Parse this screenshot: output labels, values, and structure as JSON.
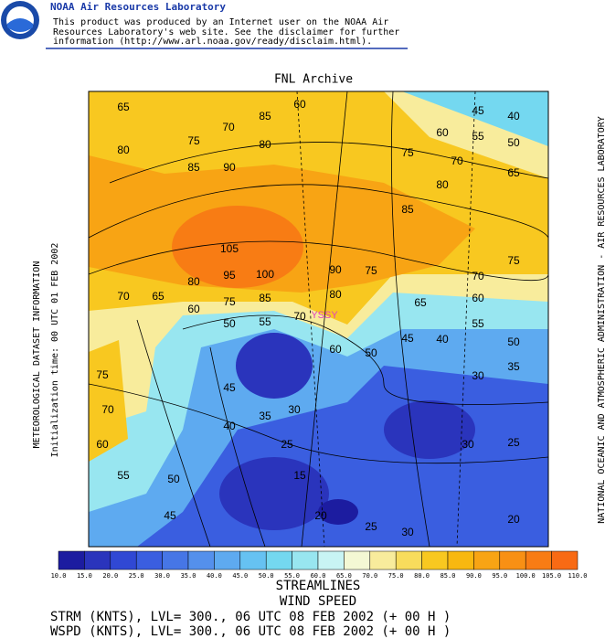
{
  "header": {
    "title": "NOAA Air Resources Laboratory",
    "disclaimer": [
      "This product was produced by an Internet user on the NOAA Air",
      "Resources Laboratory's web site.  See the disclaimer for further",
      "information (http://www.arl.noaa.gov/ready/disclaim.html)."
    ]
  },
  "logo": "NOAA",
  "map": {
    "title": "FNL Archive",
    "station": "YSSY",
    "left_labels": [
      "METEOROLOGICAL DATASET INFORMATION",
      "Initialization time: 00 UTC 01 FEB 2002"
    ],
    "right_label": "NATIONAL OCEANIC AND ATMOSPHERIC ADMINISTRATION - AIR RESOURCES LABORATORY",
    "contour_labels": [
      "65",
      "70",
      "85",
      "60",
      "45",
      "40",
      "60",
      "55",
      "50",
      "75",
      "80",
      "80",
      "75",
      "70",
      "65",
      "85",
      "90",
      "80",
      "85",
      "105",
      "75",
      "90",
      "75",
      "95",
      "100",
      "70",
      "80",
      "70",
      "65",
      "85",
      "80",
      "60",
      "60",
      "75",
      "65",
      "70",
      "55",
      "50",
      "55",
      "45",
      "40",
      "50",
      "60",
      "50",
      "35",
      "30",
      "75",
      "45",
      "70",
      "30",
      "35",
      "40",
      "60",
      "25",
      "30",
      "25",
      "55",
      "50",
      "15",
      "45",
      "20",
      "25",
      "30",
      "20"
    ]
  },
  "colorbar": {
    "labels": [
      "10.0",
      "15.0",
      "20.0",
      "25.0",
      "30.0",
      "35.0",
      "40.0",
      "45.0",
      "50.0",
      "55.0",
      "60.0",
      "65.0",
      "70.0",
      "75.0",
      "80.0",
      "85.0",
      "90.0",
      "95.0",
      "100.0",
      "105.0",
      "110.0"
    ],
    "colors": [
      "#1c1ca0",
      "#2a34bc",
      "#3048d4",
      "#3a5ee0",
      "#4676e6",
      "#5490ec",
      "#5eaaf0",
      "#66c2f2",
      "#74d8f0",
      "#98e6f0",
      "#c8f4f4",
      "#f4f8d4",
      "#f8ec9c",
      "#f8dc5c",
      "#f8c820",
      "#f8b810",
      "#f8a414",
      "#f89014",
      "#f87c14",
      "#f86a14"
    ]
  },
  "footer": [
    "STREAMLINES",
    "WIND SPEED",
    "STRM (KNTS),  LVL= 300., 06 UTC 08 FEB 2002 (+ 00 H )",
    "WSPD (KNTS),  LVL= 300., 06 UTC 08 FEB 2002 (+ 00 H )"
  ]
}
